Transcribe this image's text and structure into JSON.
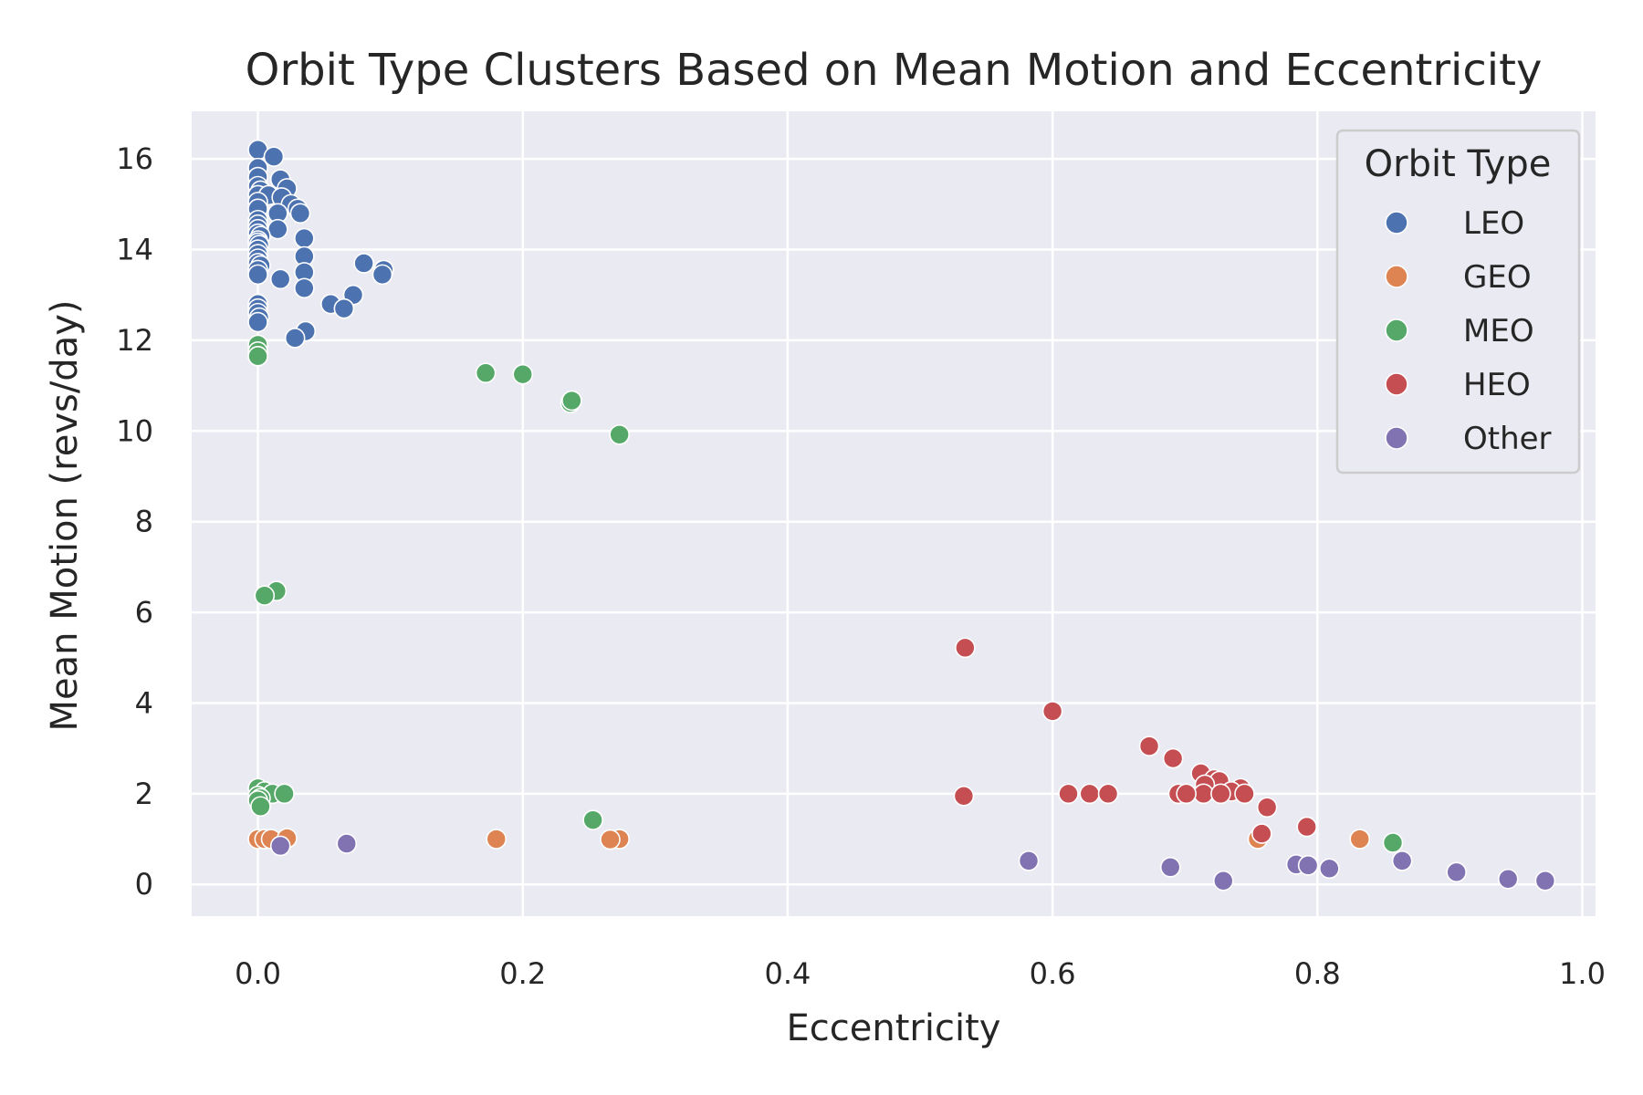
{
  "chart_data": {
    "type": "scatter",
    "title": "Orbit Type Clusters Based on Mean Motion and Eccentricity",
    "xlabel": "Eccentricity",
    "ylabel": "Mean Motion (revs/day)",
    "xlim": [
      -0.05,
      1.01
    ],
    "ylim": [
      -0.7,
      17.05
    ],
    "x_ticks": [
      0.0,
      0.2,
      0.4,
      0.6,
      0.8,
      1.0
    ],
    "x_tick_labels": [
      "0.0",
      "0.2",
      "0.4",
      "0.6",
      "0.8",
      "1.0"
    ],
    "y_ticks": [
      0,
      2,
      4,
      6,
      8,
      10,
      12,
      14,
      16
    ],
    "y_tick_labels": [
      "0",
      "2",
      "4",
      "6",
      "8",
      "10",
      "12",
      "14",
      "16"
    ],
    "grid": true,
    "legend": {
      "title": "Orbit Type",
      "placement": "top-right"
    },
    "series": [
      {
        "name": "LEO",
        "color": "#4C72B0",
        "points": [
          [
            0.0,
            16.2
          ],
          [
            0.012,
            16.05
          ],
          [
            0.0,
            15.8
          ],
          [
            0.0,
            15.6
          ],
          [
            0.017,
            15.55
          ],
          [
            0.0,
            15.4
          ],
          [
            0.022,
            15.35
          ],
          [
            0.002,
            15.3
          ],
          [
            0.0,
            15.2
          ],
          [
            0.008,
            15.2
          ],
          [
            0.018,
            15.15
          ],
          [
            0.0,
            15.05
          ],
          [
            0.025,
            15.0
          ],
          [
            0.0,
            14.9
          ],
          [
            0.03,
            14.9
          ],
          [
            0.015,
            14.8
          ],
          [
            0.032,
            14.8
          ],
          [
            0.0,
            14.65
          ],
          [
            0.0,
            14.55
          ],
          [
            0.0,
            14.45
          ],
          [
            0.015,
            14.45
          ],
          [
            0.0,
            14.35
          ],
          [
            0.002,
            14.3
          ],
          [
            0.035,
            14.25
          ],
          [
            0.0,
            14.2
          ],
          [
            0.0,
            14.15
          ],
          [
            0.001,
            14.1
          ],
          [
            0.0,
            14.0
          ],
          [
            0.0,
            13.9
          ],
          [
            0.035,
            13.85
          ],
          [
            0.0,
            13.8
          ],
          [
            0.08,
            13.7
          ],
          [
            0.0,
            13.7
          ],
          [
            0.002,
            13.65
          ],
          [
            0.095,
            13.55
          ],
          [
            0.0,
            13.55
          ],
          [
            0.035,
            13.5
          ],
          [
            0.0,
            13.45
          ],
          [
            0.094,
            13.45
          ],
          [
            0.017,
            13.35
          ],
          [
            0.035,
            13.15
          ],
          [
            0.072,
            13.0
          ],
          [
            0.055,
            12.8
          ],
          [
            0.065,
            12.7
          ],
          [
            0.0,
            12.8
          ],
          [
            0.0,
            12.7
          ],
          [
            0.0,
            12.6
          ],
          [
            0.001,
            12.5
          ],
          [
            0.0,
            12.4
          ],
          [
            0.036,
            12.2
          ],
          [
            0.028,
            12.05
          ]
        ]
      },
      {
        "name": "GEO",
        "color": "#DD8452",
        "points": [
          [
            0.0,
            1.0
          ],
          [
            0.005,
            1.0
          ],
          [
            0.01,
            1.0
          ],
          [
            0.022,
            1.02
          ],
          [
            0.18,
            1.0
          ],
          [
            0.273,
            1.0
          ],
          [
            0.266,
            0.99
          ],
          [
            0.755,
            1.0
          ],
          [
            0.832,
            1.0
          ]
        ]
      },
      {
        "name": "MEO",
        "color": "#55A868",
        "points": [
          [
            0.0,
            11.9
          ],
          [
            0.0,
            11.75
          ],
          [
            0.0,
            11.65
          ],
          [
            0.172,
            11.28
          ],
          [
            0.2,
            11.25
          ],
          [
            0.236,
            10.62
          ],
          [
            0.237,
            10.67
          ],
          [
            0.273,
            9.92
          ],
          [
            0.014,
            6.47
          ],
          [
            0.005,
            6.37
          ],
          [
            0.0,
            2.12
          ],
          [
            0.005,
            2.05
          ],
          [
            0.011,
            2.0
          ],
          [
            0.02,
            2.0
          ],
          [
            0.0,
            1.95
          ],
          [
            0.002,
            1.9
          ],
          [
            0.0,
            1.85
          ],
          [
            0.002,
            1.72
          ],
          [
            0.253,
            1.42
          ],
          [
            0.857,
            0.92
          ]
        ]
      },
      {
        "name": "HEO",
        "color": "#C44E52",
        "points": [
          [
            0.534,
            5.22
          ],
          [
            0.6,
            3.82
          ],
          [
            0.673,
            3.05
          ],
          [
            0.691,
            2.78
          ],
          [
            0.712,
            2.45
          ],
          [
            0.722,
            2.32
          ],
          [
            0.726,
            2.28
          ],
          [
            0.742,
            2.12
          ],
          [
            0.735,
            2.05
          ],
          [
            0.745,
            2.0
          ],
          [
            0.715,
            2.2
          ],
          [
            0.714,
            2.0
          ],
          [
            0.695,
            2.0
          ],
          [
            0.701,
            2.0
          ],
          [
            0.727,
            2.0
          ],
          [
            0.612,
            2.0
          ],
          [
            0.628,
            2.0
          ],
          [
            0.642,
            2.0
          ],
          [
            0.533,
            1.95
          ],
          [
            0.762,
            1.7
          ],
          [
            0.758,
            1.12
          ],
          [
            0.792,
            1.27
          ]
        ]
      },
      {
        "name": "Other",
        "color": "#8172B2",
        "points": [
          [
            0.017,
            0.85
          ],
          [
            0.067,
            0.9
          ],
          [
            0.582,
            0.52
          ],
          [
            0.689,
            0.38
          ],
          [
            0.729,
            0.08
          ],
          [
            0.784,
            0.44
          ],
          [
            0.793,
            0.42
          ],
          [
            0.809,
            0.35
          ],
          [
            0.864,
            0.52
          ],
          [
            0.905,
            0.27
          ],
          [
            0.944,
            0.12
          ],
          [
            0.972,
            0.08
          ]
        ]
      }
    ]
  }
}
